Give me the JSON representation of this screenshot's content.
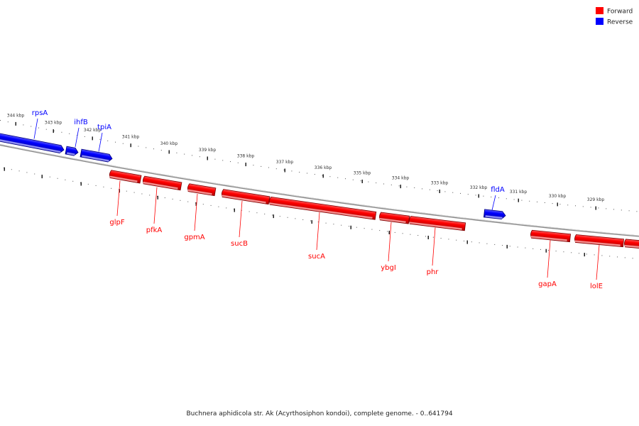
{
  "caption": "Buchnera aphidicola str. Ak (Acyrthosiphon kondoi), complete genome. - 0..641794",
  "colors": {
    "forward": "#ff0000",
    "reverse": "#0000ff",
    "backbone": "#888888",
    "tick": "#222222"
  },
  "legend": [
    {
      "label": "Forward",
      "strand": "forward"
    },
    {
      "label": "Reverse",
      "strand": "reverse"
    }
  ],
  "ticks": [
    "344 kbp",
    "343 kbp",
    "342 kbp",
    "341 kbp",
    "340 kbp",
    "339 kbp",
    "338 kbp",
    "337 kbp",
    "336 kbp",
    "335 kbp",
    "334 kbp",
    "333 kbp",
    "332 kbp",
    "331 kbp",
    "330 kbp",
    "329 kbp"
  ],
  "genes": [
    {
      "name": "rpsA",
      "strand": "reverse"
    },
    {
      "name": "ihfB",
      "strand": "reverse"
    },
    {
      "name": "tpiA",
      "strand": "reverse"
    },
    {
      "name": "glpF",
      "strand": "forward"
    },
    {
      "name": "pfkA",
      "strand": "forward"
    },
    {
      "name": "gpmA",
      "strand": "forward"
    },
    {
      "name": "sucB",
      "strand": "forward"
    },
    {
      "name": "sucA",
      "strand": "forward"
    },
    {
      "name": "ybgI",
      "strand": "forward"
    },
    {
      "name": "phr",
      "strand": "forward"
    },
    {
      "name": "fldA",
      "strand": "reverse"
    },
    {
      "name": "gapA",
      "strand": "forward"
    },
    {
      "name": "lolE",
      "strand": "forward"
    }
  ]
}
